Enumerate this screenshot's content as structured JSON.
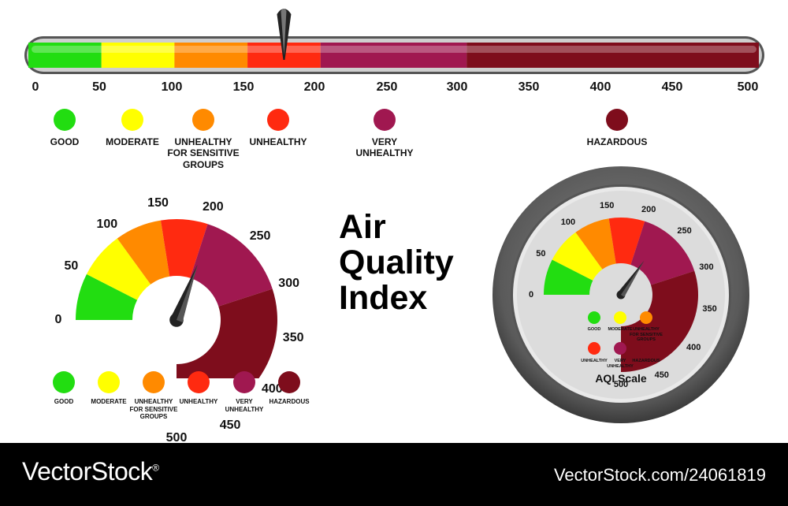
{
  "colors": {
    "good": "#22dd11",
    "moderate": "#ffff00",
    "sensitive": "#ff8a00",
    "unhealthy": "#ff2a10",
    "very_unhealthy": "#a01850",
    "hazardous": "#7e0d1c"
  },
  "scale": {
    "ticks": [
      "0",
      "50",
      "100",
      "150",
      "200",
      "250",
      "300",
      "350",
      "400",
      "450",
      "500"
    ],
    "pointer_value": 175
  },
  "legend": [
    {
      "label": "GOOD",
      "value": "good"
    },
    {
      "label": "MODERATE",
      "value": "moderate"
    },
    {
      "label": "UNHEALTHY\nFOR SENSITIVE\nGROUPS",
      "value": "sensitive"
    },
    {
      "label": "UNHEALTHY",
      "value": "unhealthy"
    },
    {
      "label": "VERY\nUNHEALTHY",
      "value": "very_unhealthy"
    },
    {
      "label": "HAZARDOUS",
      "value": "hazardous"
    }
  ],
  "gauge_left": {
    "needle_value": 205,
    "ticks": [
      "0",
      "50",
      "100",
      "150",
      "200",
      "250",
      "300",
      "350",
      "400",
      "450",
      "500"
    ]
  },
  "gauge_right": {
    "needle_value": 230,
    "ticks": [
      "0",
      "50",
      "100",
      "150",
      "200",
      "250",
      "300",
      "350",
      "400",
      "450",
      "500"
    ],
    "caption": "AQI Scale"
  },
  "title": "Air\nQuality\nIndex",
  "footer": {
    "brand": "VectorStock",
    "registered": "®",
    "stock_id": "VectorStock.com/24061819"
  }
}
